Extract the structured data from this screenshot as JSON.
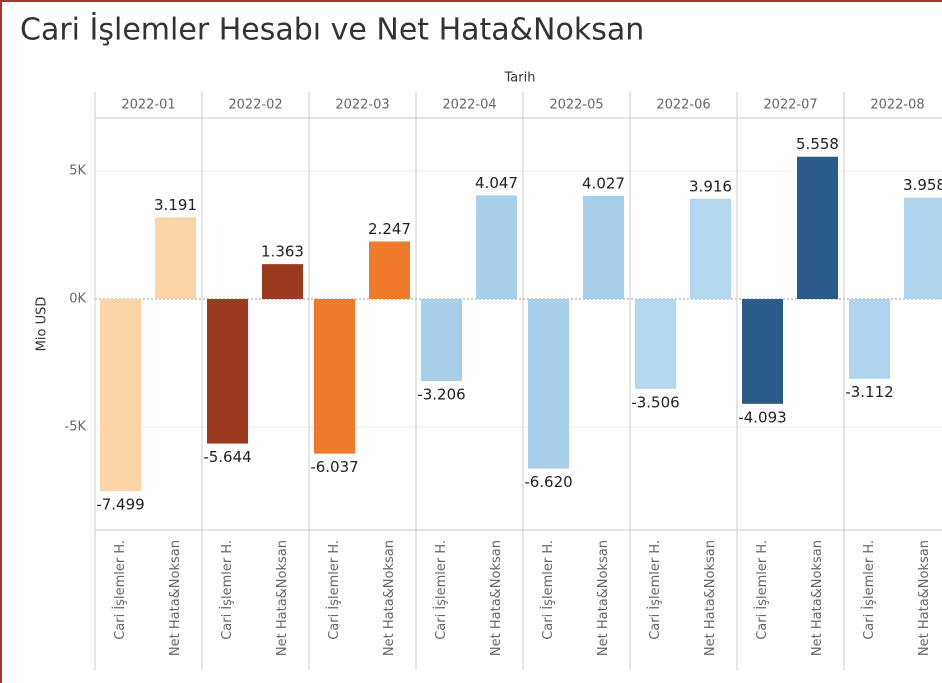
{
  "chart_data": {
    "type": "bar",
    "title": "Cari İşlemler Hesabı ve Net Hata&Noksan",
    "column_header": "Tarih",
    "y_label": "Mio USD",
    "categories": [
      "2022-01",
      "2022-02",
      "2022-03",
      "2022-04",
      "2022-05",
      "2022-06",
      "2022-07",
      "2022-08"
    ],
    "colors": [
      "#fdd4a6",
      "#9c3a20",
      "#ee7a2a",
      "#a8cfe9",
      "#a8cfe9",
      "#b2d7ee",
      "#2b5b89",
      "#aed3ec"
    ],
    "series": [
      {
        "name": "Cari İşlemler H.",
        "values": [
          -7499,
          -5644,
          -6037,
          -3206,
          -6620,
          -3506,
          -4093,
          -3112
        ],
        "value_labels": [
          "-7.499",
          "-5.644",
          "-6.037",
          "-3.206",
          "-6.620",
          "-3.506",
          "-4.093",
          "-3.112"
        ]
      },
      {
        "name": "Net Hata&Noksan",
        "values": [
          3191,
          1363,
          2247,
          4047,
          4027,
          3916,
          5558,
          3958
        ],
        "value_labels": [
          "3.191",
          "1.363",
          "2.247",
          "4.047",
          "4.027",
          "3.916",
          "5.558",
          "3.958"
        ]
      }
    ],
    "ylim": [
      -9020,
      7070
    ],
    "yticks": [
      {
        "value": 5000,
        "label": "5K"
      },
      {
        "value": 0,
        "label": "0K"
      },
      {
        "value": -5000,
        "label": "-5K"
      }
    ]
  }
}
